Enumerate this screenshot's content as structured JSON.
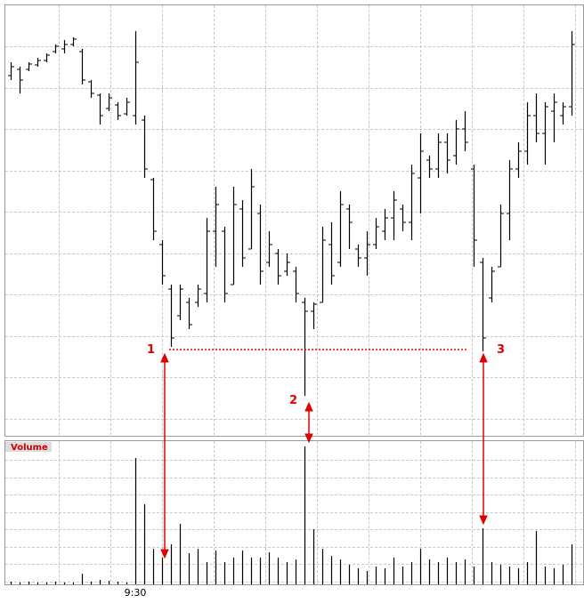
{
  "chart_data": {
    "type": "ohlc",
    "categories": [
      null,
      null,
      null,
      null,
      null,
      null,
      null,
      null,
      null,
      null,
      null,
      null,
      null,
      null,
      "9:30",
      null,
      null,
      null,
      null,
      null,
      null,
      null,
      null,
      null,
      null,
      null,
      null,
      null,
      null,
      null,
      null,
      null,
      null,
      null,
      null,
      null,
      null,
      null,
      null,
      null,
      null,
      null,
      null,
      null,
      null,
      null,
      null,
      null,
      null,
      null,
      null,
      null,
      null,
      null,
      null,
      null,
      null,
      null,
      null,
      null,
      null,
      null,
      null,
      null
    ],
    "open": [
      405,
      412,
      412,
      417,
      422,
      432,
      435,
      440,
      432,
      398,
      383,
      368,
      372,
      362,
      360,
      355,
      288,
      215,
      165,
      135,
      150,
      150,
      160,
      230,
      230,
      170,
      255,
      210,
      250,
      195,
      205,
      185,
      185,
      150,
      140,
      150,
      215,
      195,
      255,
      210,
      200,
      215,
      230,
      245,
      255,
      240,
      290,
      310,
      300,
      330,
      315,
      345,
      300,
      195,
      155,
      190,
      250,
      300,
      320,
      360,
      340,
      365,
      360,
      370
    ],
    "high": [
      420,
      415,
      420,
      425,
      430,
      440,
      445,
      448,
      435,
      400,
      385,
      385,
      375,
      380,
      455,
      360,
      290,
      220,
      170,
      170,
      155,
      170,
      245,
      280,
      235,
      280,
      265,
      300,
      260,
      230,
      210,
      205,
      190,
      155,
      150,
      235,
      240,
      275,
      260,
      215,
      230,
      245,
      255,
      275,
      260,
      305,
      340,
      315,
      340,
      340,
      355,
      365,
      305,
      200,
      190,
      260,
      310,
      330,
      375,
      385,
      375,
      385,
      375,
      455
    ],
    "low": [
      400,
      385,
      410,
      415,
      420,
      430,
      430,
      438,
      395,
      380,
      350,
      365,
      355,
      360,
      350,
      290,
      220,
      170,
      100,
      130,
      120,
      145,
      150,
      190,
      150,
      170,
      190,
      210,
      170,
      190,
      170,
      180,
      150,
      45,
      120,
      150,
      170,
      190,
      210,
      190,
      180,
      210,
      220,
      220,
      230,
      220,
      250,
      290,
      290,
      295,
      305,
      320,
      190,
      95,
      150,
      190,
      220,
      290,
      305,
      330,
      305,
      330,
      350,
      360
    ],
    "close": [
      415,
      400,
      418,
      422,
      428,
      438,
      440,
      446,
      400,
      385,
      360,
      380,
      360,
      375,
      420,
      300,
      230,
      180,
      110,
      165,
      125,
      165,
      230,
      260,
      160,
      260,
      200,
      280,
      185,
      215,
      180,
      195,
      160,
      140,
      148,
      220,
      180,
      260,
      240,
      200,
      215,
      235,
      245,
      265,
      240,
      295,
      320,
      300,
      330,
      310,
      345,
      330,
      220,
      110,
      185,
      250,
      300,
      320,
      360,
      340,
      370,
      375,
      370,
      440
    ],
    "color": "#000000",
    "ylim": [
      0,
      485
    ],
    "volume": {
      "label": "Volume",
      "ylim": [
        0,
        160
      ],
      "values": [
        3,
        2,
        3,
        2,
        2,
        3,
        2,
        2,
        12,
        3,
        5,
        4,
        3,
        2,
        142,
        90,
        40,
        30,
        45,
        68,
        35,
        40,
        25,
        38,
        25,
        30,
        38,
        30,
        30,
        36,
        30,
        25,
        28,
        155,
        62,
        40,
        32,
        28,
        22,
        18,
        15,
        20,
        18,
        30,
        20,
        25,
        40,
        28,
        25,
        30,
        25,
        28,
        20,
        63,
        25,
        22,
        20,
        18,
        25,
        60,
        20,
        18,
        22,
        45
      ]
    },
    "annotations": [
      "1",
      "2",
      "3"
    ]
  }
}
